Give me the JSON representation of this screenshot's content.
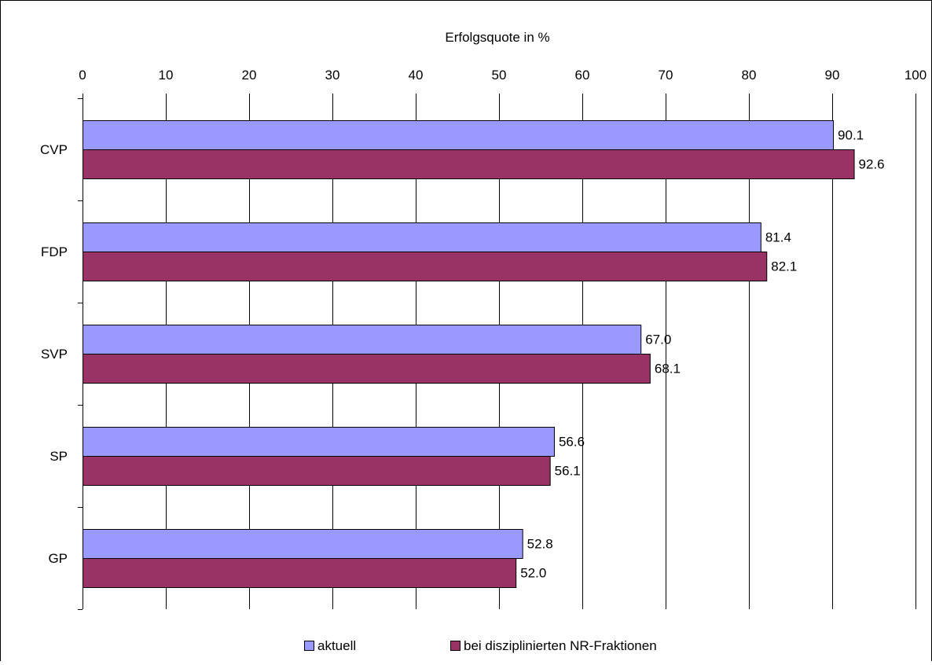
{
  "chart_data": {
    "type": "bar",
    "orientation": "horizontal",
    "xlabel": "Erfolgsquote in %",
    "xlim": [
      0,
      100
    ],
    "xticks": [
      0,
      10,
      20,
      30,
      40,
      50,
      60,
      70,
      80,
      90,
      100
    ],
    "grid": true,
    "legend_position": "bottom",
    "categories": [
      "CVP",
      "FDP",
      "SVP",
      "SP",
      "GP"
    ],
    "series": [
      {
        "name": "aktuell",
        "color": "#9999ff",
        "values": [
          90.1,
          81.4,
          67.0,
          56.6,
          52.8
        ],
        "labels": [
          "90.1",
          "81.4",
          "67.0",
          "56.6",
          "52.8"
        ]
      },
      {
        "name": "bei disziplinierten NR-Fraktionen",
        "color": "#993366",
        "values": [
          92.6,
          82.1,
          68.1,
          56.1,
          52.0
        ],
        "labels": [
          "92.6",
          "82.1",
          "68.1",
          "56.1",
          "52.0"
        ]
      }
    ]
  }
}
